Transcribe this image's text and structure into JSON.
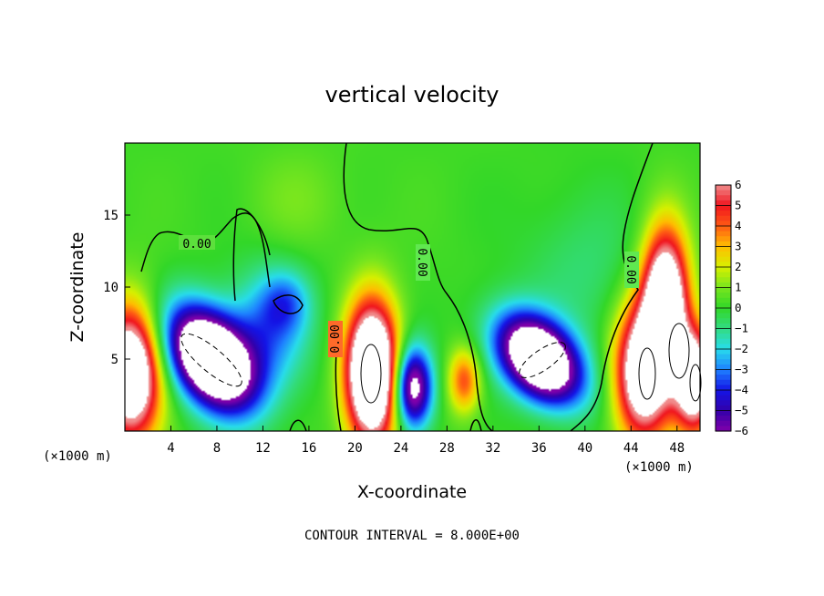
{
  "chart_data": {
    "type": "heatmap",
    "title": "vertical velocity",
    "xlabel": "X-coordinate",
    "ylabel": "Z-coordinate",
    "x_unit_left": "(×1000 m)",
    "x_unit_right": "(×1000 m)",
    "footer": "CONTOUR INTERVAL = 8.000E+00",
    "xlim": [
      0,
      50
    ],
    "ylim": [
      0,
      20
    ],
    "x_ticks": [
      "4",
      "8",
      "12",
      "16",
      "20",
      "24",
      "28",
      "32",
      "36",
      "40",
      "44",
      "48"
    ],
    "y_ticks": [
      "5",
      "10",
      "15"
    ],
    "colorbar": {
      "ticks": [
        "6",
        "5",
        "4",
        "3",
        "2",
        "1",
        "0",
        "−1",
        "−2",
        "−3",
        "−4",
        "−5",
        "−6"
      ],
      "range": [
        -6,
        6
      ],
      "saturated_color": "#ffffff"
    },
    "contour_labels": [
      "0.00",
      "0.00",
      "0.00",
      "0.00"
    ],
    "features": [
      {
        "x": 0.5,
        "z": 4.0,
        "value": 10,
        "sx": 1.8,
        "sz": 3.2
      },
      {
        "x": 7.5,
        "z": 5.0,
        "value": -12,
        "sx": 3.0,
        "sz": 2.0,
        "rot": -0.7
      },
      {
        "x": 12.5,
        "z": 7.0,
        "value": -3,
        "sx": 2.5,
        "sz": 3.0
      },
      {
        "x": 14.0,
        "z": 9.0,
        "value": -2,
        "sx": 1.5,
        "sz": 1.5
      },
      {
        "x": 15.0,
        "z": 16.0,
        "value": 0.7,
        "sx": 3.0,
        "sz": 2.5
      },
      {
        "x": 21.5,
        "z": 4.0,
        "value": 12,
        "sx": 1.6,
        "sz": 3.4
      },
      {
        "x": 25.0,
        "z": 3.0,
        "value": -8,
        "sx": 1.2,
        "sz": 2.0
      },
      {
        "x": 29.5,
        "z": 3.5,
        "value": 4,
        "sx": 1.0,
        "sz": 1.6
      },
      {
        "x": 36.0,
        "z": 5.0,
        "value": -11,
        "sx": 2.8,
        "sz": 1.8,
        "rot": -0.55
      },
      {
        "x": 40.0,
        "z": 11.0,
        "value": -1,
        "sx": 4.0,
        "sz": 4.0
      },
      {
        "x": 45.0,
        "z": 4.0,
        "value": 9,
        "sx": 1.7,
        "sz": 3.3
      },
      {
        "x": 47.0,
        "z": 9.0,
        "value": 10,
        "sx": 1.4,
        "sz": 3.5
      },
      {
        "x": 49.5,
        "z": 3.5,
        "value": 9,
        "sx": 1.2,
        "sz": 2.5
      }
    ]
  }
}
